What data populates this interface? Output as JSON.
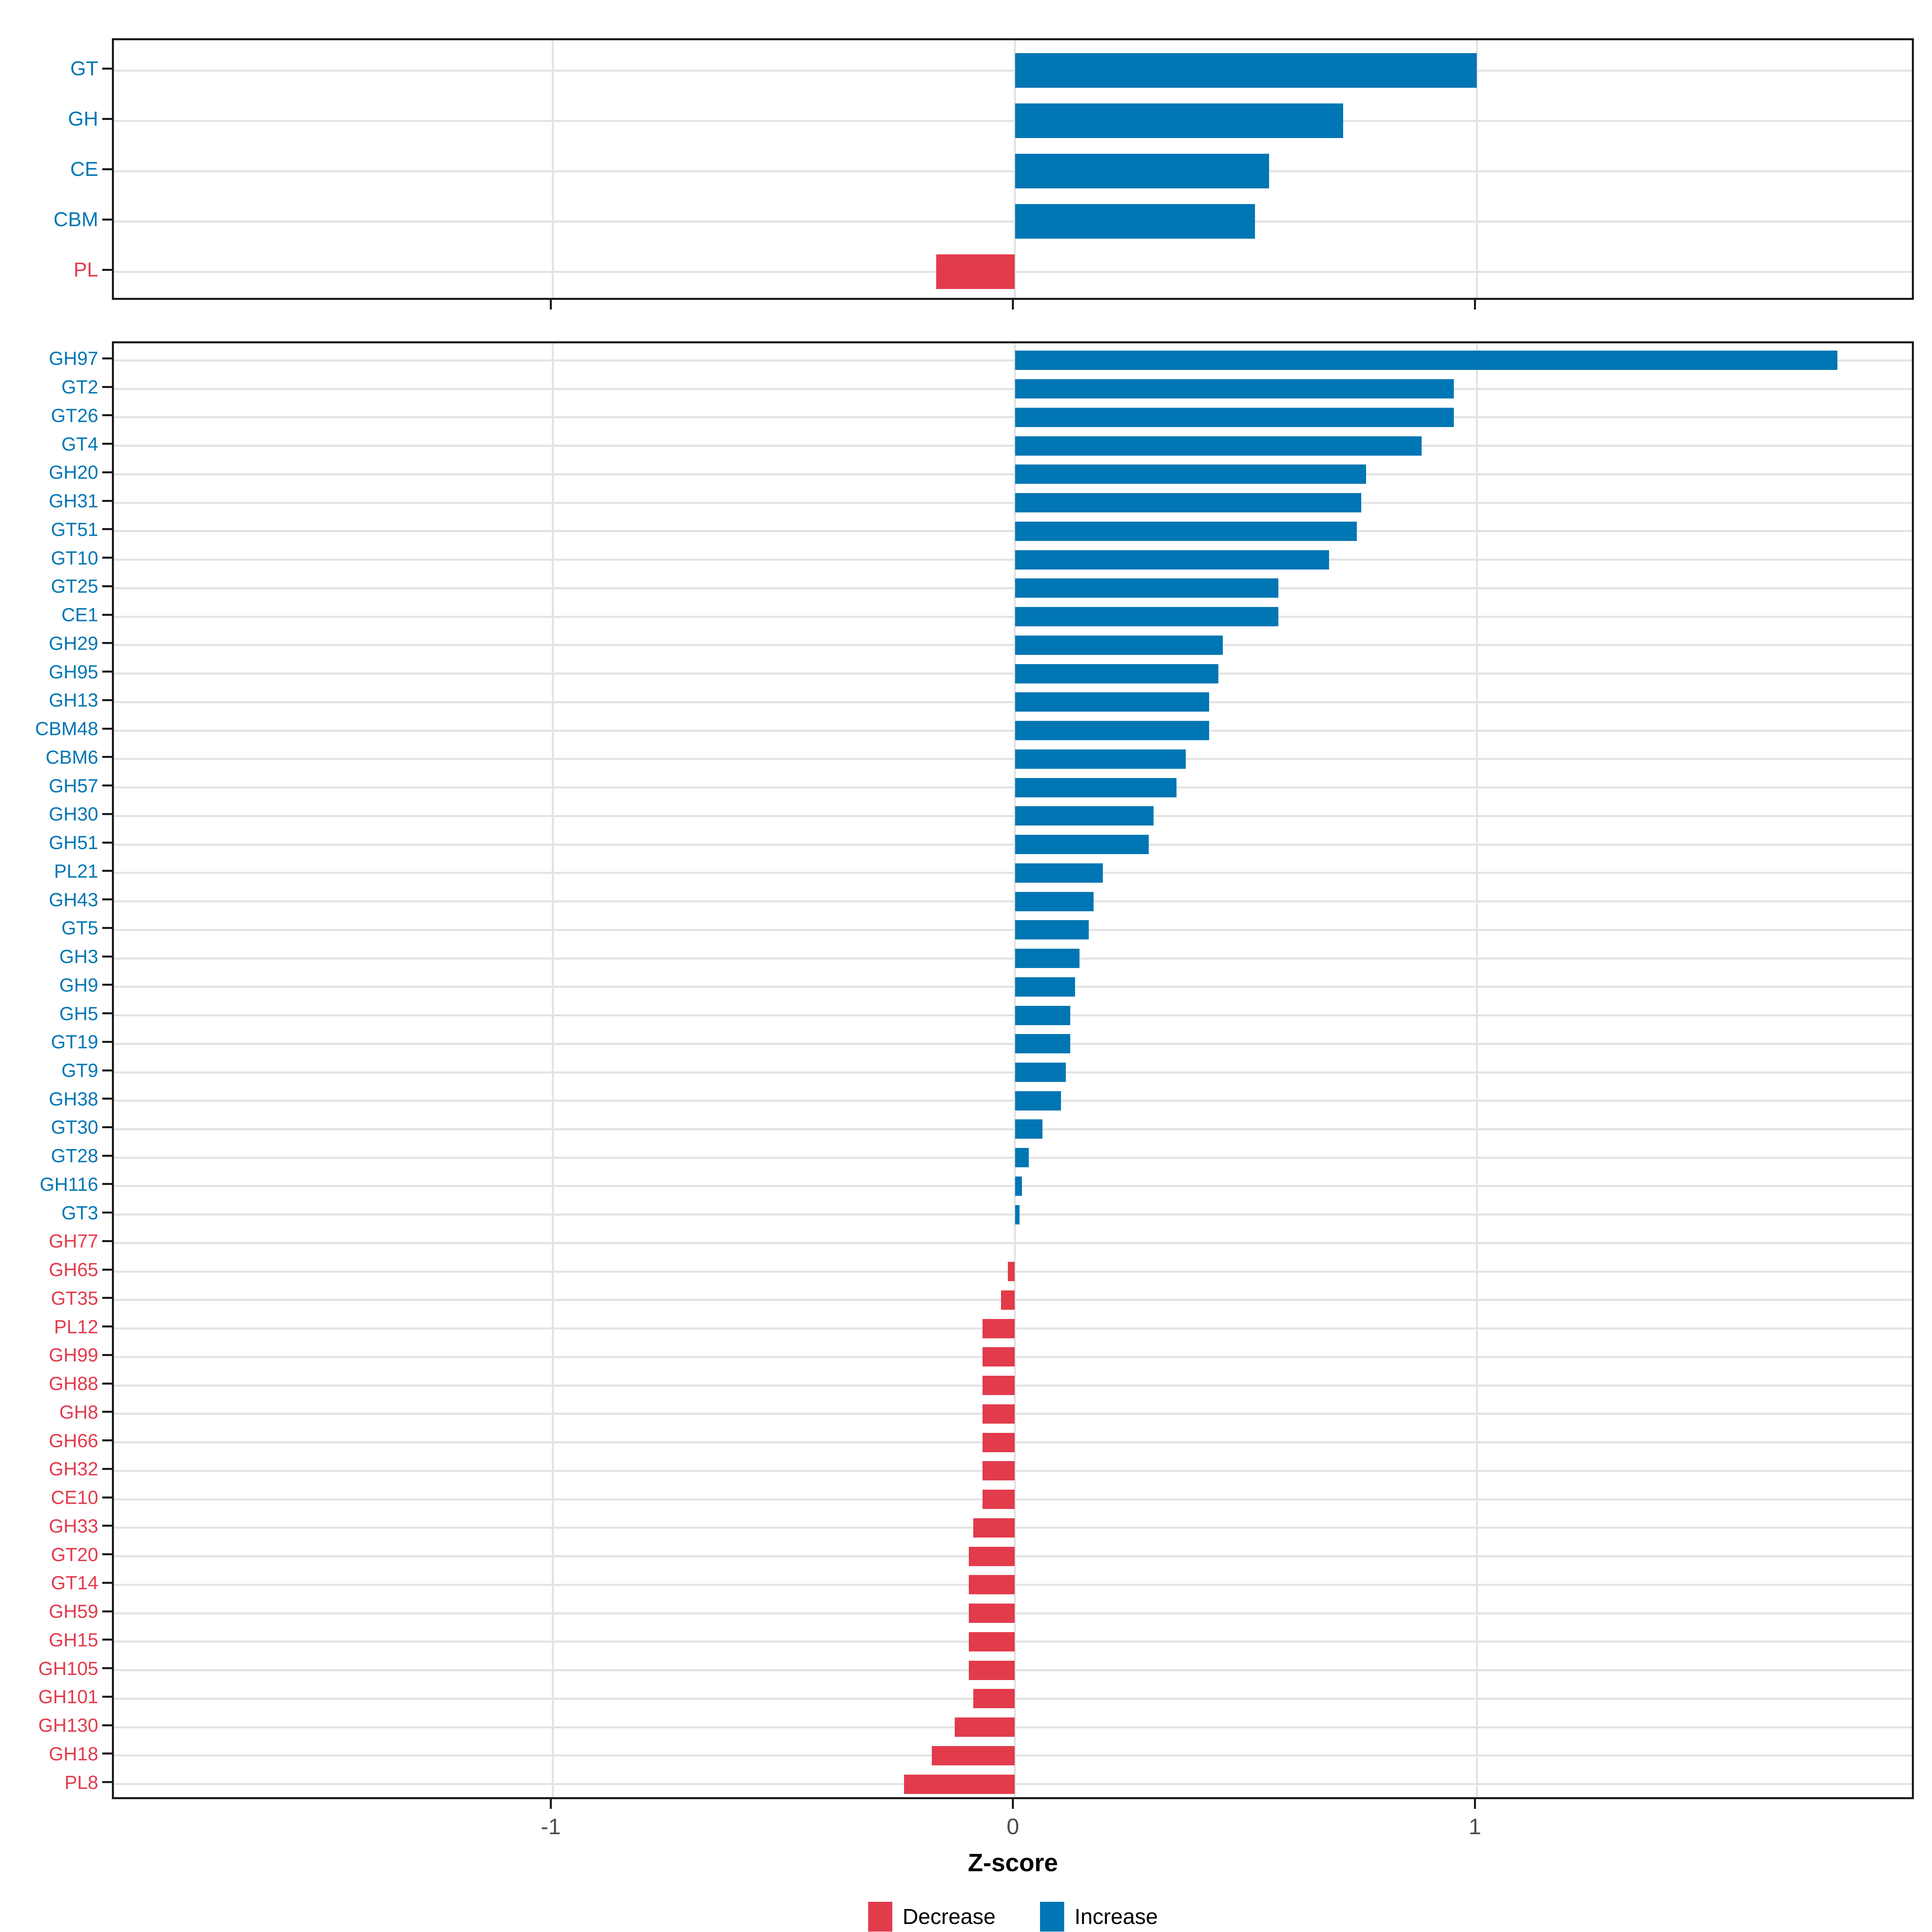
{
  "figure": {
    "x_axis": {
      "title": "Z-score",
      "limits": [
        -1.95,
        1.95
      ],
      "ticks": [
        {
          "value": -1,
          "label": "-1"
        },
        {
          "value": 0,
          "label": "0"
        },
        {
          "value": 1,
          "label": "1"
        }
      ]
    },
    "legend": {
      "items": [
        {
          "key": "decrease",
          "label": "Decrease",
          "color": "#E23B4C"
        },
        {
          "key": "increase",
          "label": "Increase",
          "color": "#0076B4"
        }
      ]
    },
    "palette": {
      "increase": "#0076B4",
      "decrease": "#E23B4C",
      "grid": "#E3E3E3",
      "panel_border": "#1A1A1A",
      "tick_text": "#4D4D4D"
    }
  },
  "chart_data": [
    {
      "type": "bar",
      "orientation": "horizontal",
      "panel": "top",
      "title": "",
      "xlabel": "Z-score",
      "ylabel": "",
      "xlim": [
        -1.95,
        1.95
      ],
      "grid": "category-lines-and-x-ticks",
      "legend_position": "bottom",
      "categories": [
        "GT",
        "GH",
        "CE",
        "CBM",
        "PL"
      ],
      "values": [
        1.0,
        0.71,
        0.55,
        0.52,
        -0.17
      ],
      "directions": [
        "increase",
        "increase",
        "increase",
        "increase",
        "decrease"
      ]
    },
    {
      "type": "bar",
      "orientation": "horizontal",
      "panel": "bottom",
      "title": "",
      "xlabel": "Z-score",
      "ylabel": "",
      "xlim": [
        -1.95,
        1.95
      ],
      "grid": "category-lines-and-x-ticks",
      "legend_position": "bottom",
      "categories": [
        "GH97",
        "GT2",
        "GT26",
        "GT4",
        "GH20",
        "GH31",
        "GT51",
        "GT10",
        "GT25",
        "CE1",
        "GH29",
        "GH95",
        "GH13",
        "CBM48",
        "CBM6",
        "GH57",
        "GH30",
        "GH51",
        "PL21",
        "GH43",
        "GT5",
        "GH3",
        "GH9",
        "GH5",
        "GT19",
        "GT9",
        "GH38",
        "GT30",
        "GT28",
        "GH116",
        "GT3",
        "GH77",
        "GH65",
        "GT35",
        "PL12",
        "GH99",
        "GH88",
        "GH8",
        "GH66",
        "GH32",
        "CE10",
        "GH33",
        "GT20",
        "GT14",
        "GH59",
        "GH15",
        "GH105",
        "GH101",
        "GH130",
        "GH18",
        "PL8"
      ],
      "values": [
        1.78,
        0.95,
        0.95,
        0.88,
        0.76,
        0.75,
        0.74,
        0.68,
        0.57,
        0.57,
        0.45,
        0.44,
        0.42,
        0.42,
        0.37,
        0.35,
        0.3,
        0.29,
        0.19,
        0.17,
        0.16,
        0.14,
        0.13,
        0.12,
        0.12,
        0.11,
        0.1,
        0.06,
        0.03,
        0.015,
        0.01,
        0.0,
        -0.015,
        -0.03,
        -0.07,
        -0.07,
        -0.07,
        -0.07,
        -0.07,
        -0.07,
        -0.07,
        -0.09,
        -0.1,
        -0.1,
        -0.1,
        -0.1,
        -0.1,
        -0.09,
        -0.13,
        -0.18,
        -0.24
      ],
      "directions": [
        "increase",
        "increase",
        "increase",
        "increase",
        "increase",
        "increase",
        "increase",
        "increase",
        "increase",
        "increase",
        "increase",
        "increase",
        "increase",
        "increase",
        "increase",
        "increase",
        "increase",
        "increase",
        "increase",
        "increase",
        "increase",
        "increase",
        "increase",
        "increase",
        "increase",
        "increase",
        "increase",
        "increase",
        "increase",
        "increase",
        "increase",
        "decrease",
        "decrease",
        "decrease",
        "decrease",
        "decrease",
        "decrease",
        "decrease",
        "decrease",
        "decrease",
        "decrease",
        "decrease",
        "decrease",
        "decrease",
        "decrease",
        "decrease",
        "decrease",
        "decrease",
        "decrease",
        "decrease",
        "decrease"
      ]
    }
  ]
}
